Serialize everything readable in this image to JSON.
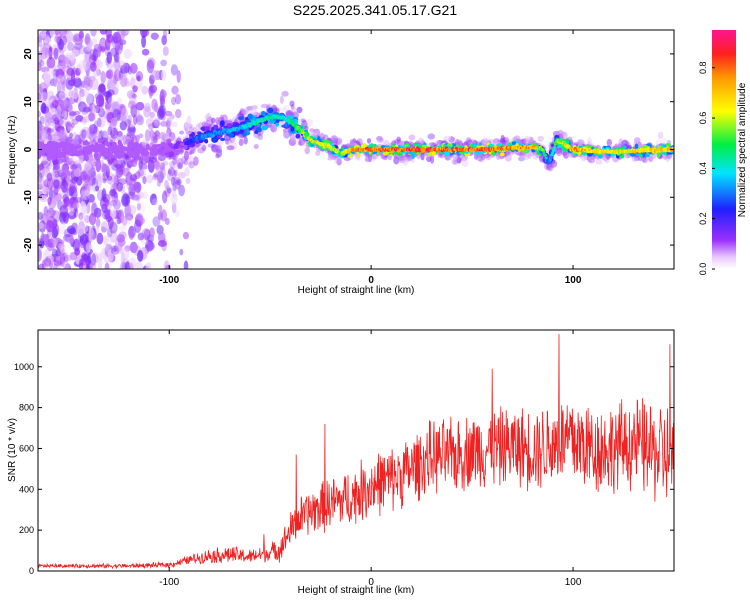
{
  "title": "S225.2025.341.05.17.G21",
  "colors": {
    "snr_line": "#ee2222",
    "axis": "#000000",
    "background": "#ffffff"
  },
  "chart_data": [
    {
      "type": "heatmap",
      "title": "S225.2025.341.05.17.G21",
      "xlabel": "Height of straight line (km)",
      "ylabel": "Frequency (Hz)",
      "xlim": [
        -165,
        150
      ],
      "ylim": [
        -25,
        25
      ],
      "x_ticks": [
        -100,
        0,
        100
      ],
      "y_ticks": [
        -20,
        -10,
        0,
        10,
        20
      ],
      "colorbar": {
        "label": "Normalized spectral amplitude",
        "range": [
          0.0,
          0.95
        ],
        "ticks": [
          0.0,
          0.2,
          0.4,
          0.6,
          0.8
        ],
        "colormap": "rainbow (white-violet-blue-cyan-green-yellow-orange-red-magenta)"
      },
      "ridge": {
        "description": "frequency of peak spectral amplitude vs height",
        "x": [
          -165,
          -140,
          -110,
          -95,
          -85,
          -75,
          -65,
          -55,
          -48,
          -42,
          -35,
          -30,
          -25,
          -20,
          -15,
          -10,
          0,
          20,
          50,
          80,
          85,
          88,
          92,
          100,
          120,
          150
        ],
        "y": [
          0,
          0,
          0,
          0.5,
          2.5,
          3.5,
          4.5,
          6,
          7,
          6.5,
          4,
          2,
          1.2,
          0.5,
          -1,
          0,
          0,
          0,
          0,
          0.5,
          0,
          -3,
          2,
          0,
          -0.5,
          0
        ],
        "amplitude": [
          0.05,
          0.05,
          0.1,
          0.2,
          0.35,
          0.35,
          0.4,
          0.5,
          0.5,
          0.45,
          0.6,
          0.7,
          0.7,
          0.75,
          0.6,
          0.85,
          0.9,
          0.92,
          0.9,
          0.85,
          0.6,
          0.3,
          0.6,
          0.85,
          0.7,
          0.8
        ]
      }
    },
    {
      "type": "line",
      "title": "",
      "xlabel": "Height of straight line (km)",
      "ylabel": "SNR (10 * v/v)",
      "xlim": [
        -165,
        150
      ],
      "ylim": [
        0,
        1180
      ],
      "x_ticks": [
        -100,
        0,
        100
      ],
      "y_ticks": [
        0,
        200,
        400,
        600,
        800,
        1000
      ],
      "series": [
        {
          "name": "SNR",
          "envelope_x": [
            -165,
            -120,
            -100,
            -90,
            -80,
            -70,
            -60,
            -50,
            -45,
            -40,
            -35,
            -30,
            -20,
            -10,
            0,
            10,
            20,
            30,
            40,
            50,
            60,
            70,
            80,
            90,
            100,
            110,
            120,
            130,
            140,
            150
          ],
          "envelope_mean": [
            25,
            25,
            30,
            55,
            75,
            80,
            70,
            90,
            110,
            200,
            260,
            290,
            330,
            360,
            420,
            450,
            500,
            560,
            560,
            590,
            600,
            610,
            600,
            620,
            640,
            600,
            600,
            630,
            580,
            560
          ],
          "envelope_spread": [
            10,
            12,
            15,
            25,
            40,
            50,
            40,
            50,
            70,
            100,
            120,
            130,
            150,
            160,
            180,
            180,
            190,
            200,
            210,
            210,
            220,
            220,
            230,
            250,
            270,
            260,
            250,
            260,
            280,
            300
          ],
          "peaks": [
            {
              "x": -53,
              "y": 180
            },
            {
              "x": -37,
              "y": 570
            },
            {
              "x": -23,
              "y": 720
            },
            {
              "x": 60,
              "y": 990
            },
            {
              "x": 93,
              "y": 1160
            },
            {
              "x": 148,
              "y": 1110
            }
          ]
        }
      ]
    }
  ]
}
